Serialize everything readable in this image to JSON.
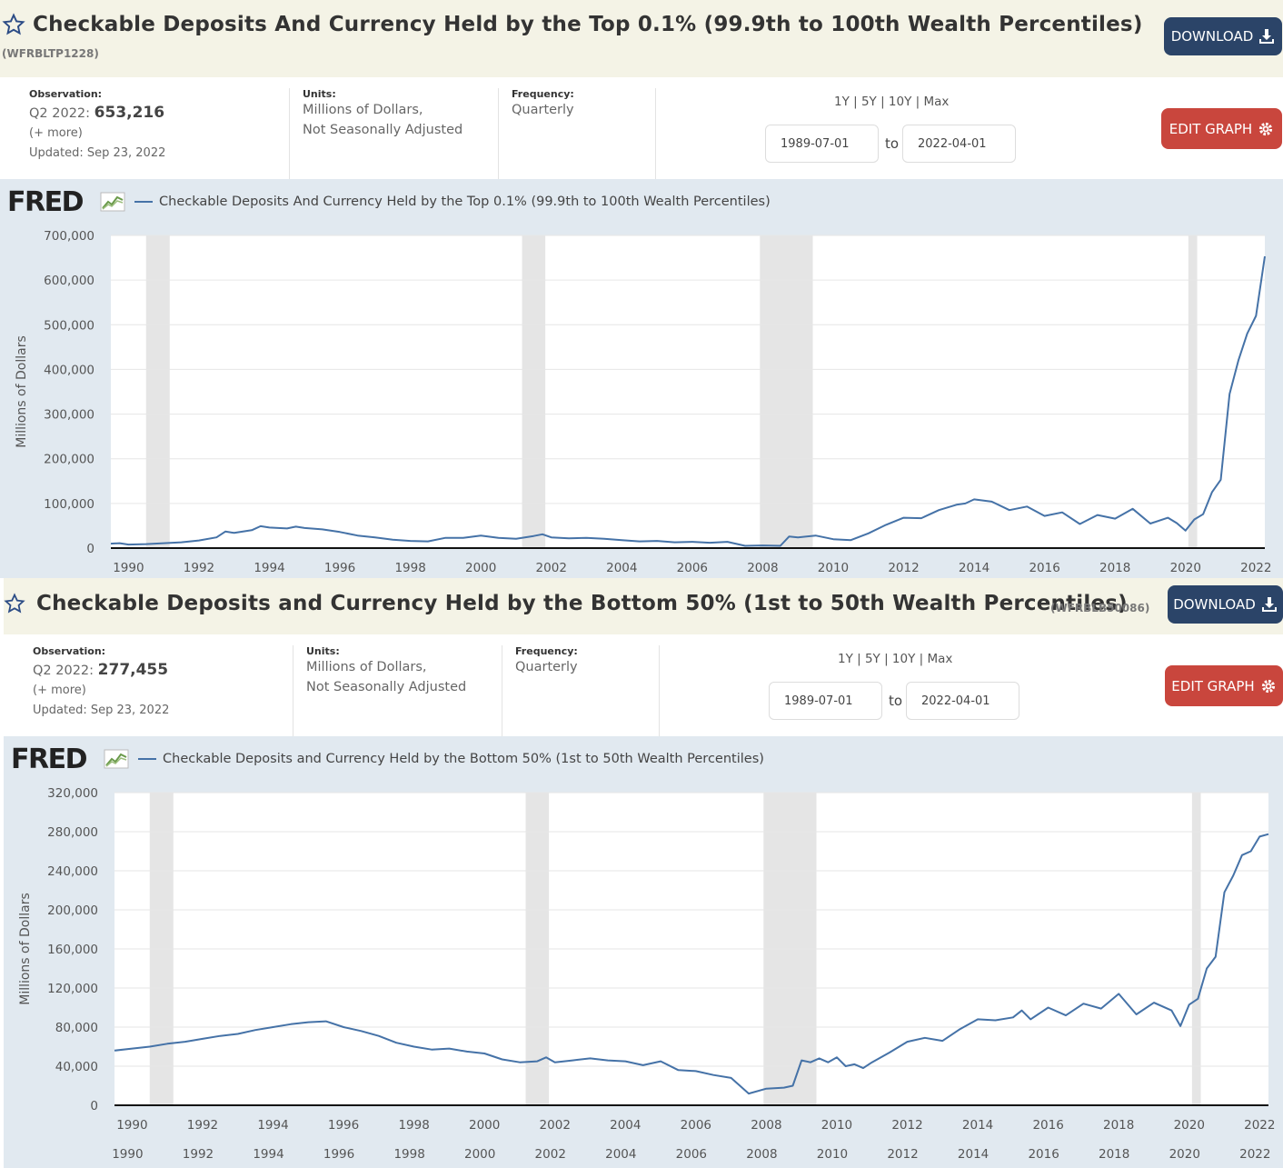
{
  "charts": [
    {
      "title": "Checkable Deposits And Currency Held by the Top 0.1% (99.9th to 100th Wealth Percentiles)",
      "series_id": "(WFRBLTP1228)",
      "download_label": "DOWNLOAD",
      "observation_label": "Observation:",
      "observation_period": "Q2 2022:",
      "observation_value": "653,216",
      "more_label": "(+ more)",
      "updated": "Updated: Sep 23, 2022",
      "units_label": "Units:",
      "units_line1": "Millions of Dollars,",
      "units_line2": "Not Seasonally Adjusted",
      "frequency_label": "Frequency:",
      "frequency_value": "Quarterly",
      "range_links": "1Y | 5Y | 10Y | Max",
      "date_from": "1989-07-01",
      "date_to_label": "to",
      "date_to": "2022-04-01",
      "edit_label": "EDIT GRAPH",
      "brand": "FRED",
      "legend": "Checkable Deposits And Currency Held by the Top 0.1% (99.9th to 100th Wealth Percentiles)",
      "colors": {
        "line": "#4572a7",
        "recession": "#e5e5e5",
        "download": "#2b4468",
        "edit": "#c9463d"
      }
    },
    {
      "title": "Checkable Deposits and Currency Held by the Bottom 50% (1st to 50th Wealth Percentiles)",
      "series_id": "(WFRBLB50086)",
      "download_label": "DOWNLOAD",
      "observation_label": "Observation:",
      "observation_period": "Q2 2022:",
      "observation_value": "277,455",
      "more_label": "(+ more)",
      "updated": "Updated: Sep 23, 2022",
      "units_label": "Units:",
      "units_line1": "Millions of Dollars,",
      "units_line2": "Not Seasonally Adjusted",
      "frequency_label": "Frequency:",
      "frequency_value": "Quarterly",
      "range_links": "1Y | 5Y | 10Y | Max",
      "date_from": "1989-07-01",
      "date_to_label": "to",
      "date_to": "2022-04-01",
      "edit_label": "EDIT GRAPH",
      "brand": "FRED",
      "legend": "Checkable Deposits and Currency Held by the Bottom 50% (1st to 50th Wealth Percentiles)",
      "colors": {
        "line": "#4572a7",
        "recession": "#e5e5e5",
        "download": "#2b4468",
        "edit": "#c9463d"
      }
    }
  ],
  "chart_data": [
    {
      "type": "line",
      "title": "Checkable Deposits And Currency Held by the Top 0.1% (99.9th to 100th Wealth Percentiles)",
      "ylabel": "Millions of Dollars",
      "xlabel": "",
      "xlim": [
        1989.5,
        2022.25
      ],
      "ylim": [
        0,
        700000
      ],
      "y_ticks": [
        0,
        100000,
        200000,
        300000,
        400000,
        500000,
        600000,
        700000
      ],
      "y_tick_labels": [
        "0",
        "100,000",
        "200,000",
        "300,000",
        "400,000",
        "500,000",
        "600,000",
        "700,000"
      ],
      "x_ticks": [
        1990,
        1992,
        1994,
        1996,
        1998,
        2000,
        2002,
        2004,
        2006,
        2008,
        2010,
        2012,
        2014,
        2016,
        2018,
        2020,
        2022
      ],
      "grid": true,
      "recessions": [
        [
          1990.5,
          1991.17
        ],
        [
          2001.17,
          2001.83
        ],
        [
          2007.92,
          2009.42
        ],
        [
          2020.08,
          2020.33
        ]
      ],
      "series": [
        {
          "x": [
            1989.5,
            1989.75,
            1990,
            1990.5,
            1991,
            1991.5,
            1992,
            1992.5,
            1992.75,
            1993,
            1993.5,
            1993.75,
            1994,
            1994.5,
            1994.75,
            1995,
            1995.5,
            1996,
            1996.5,
            1997,
            1997.5,
            1998,
            1998.5,
            1999,
            1999.5,
            2000,
            2000.5,
            2001,
            2001.5,
            2001.75,
            2002,
            2002.5,
            2003,
            2003.5,
            2004,
            2004.5,
            2005,
            2005.5,
            2006,
            2006.5,
            2007,
            2007.5,
            2008,
            2008.5,
            2008.75,
            2009,
            2009.5,
            2010,
            2010.5,
            2011,
            2011.5,
            2012,
            2012.5,
            2013,
            2013.5,
            2013.75,
            2014,
            2014.5,
            2015,
            2015.5,
            2016,
            2016.5,
            2017,
            2017.5,
            2018,
            2018.5,
            2019,
            2019.5,
            2019.75,
            2020,
            2020.25,
            2020.5,
            2020.75,
            2021,
            2021.25,
            2021.5,
            2021.75,
            2022,
            2022.25
          ],
          "y": [
            10000,
            11000,
            8000,
            9000,
            11000,
            13000,
            17000,
            24000,
            37000,
            34000,
            40000,
            49000,
            46000,
            44000,
            48000,
            45000,
            42000,
            36000,
            28000,
            24000,
            19000,
            16000,
            15000,
            23000,
            23000,
            28000,
            23000,
            21000,
            27000,
            31000,
            24000,
            22000,
            23000,
            21000,
            18000,
            15000,
            16000,
            13000,
            14000,
            12000,
            14000,
            5000,
            6000,
            5000,
            26000,
            24000,
            28000,
            20000,
            18000,
            33000,
            52000,
            68000,
            67000,
            85000,
            97000,
            100000,
            109000,
            104000,
            85000,
            93000,
            72000,
            80000,
            54000,
            74000,
            66000,
            88000,
            55000,
            68000,
            56000,
            39000,
            64000,
            76000,
            125000,
            153000,
            345000,
            420000,
            480000,
            520000,
            653216
          ]
        }
      ]
    },
    {
      "type": "line",
      "title": "Checkable Deposits and Currency Held by the Bottom 50% (1st to 50th Wealth Percentiles)",
      "ylabel": "Millions of Dollars",
      "xlabel": "",
      "xlim": [
        1989.5,
        2022.25
      ],
      "ylim": [
        0,
        320000
      ],
      "y_ticks": [
        0,
        40000,
        80000,
        120000,
        160000,
        200000,
        240000,
        280000,
        320000
      ],
      "y_tick_labels": [
        "0",
        "40,000",
        "80,000",
        "120,000",
        "160,000",
        "200,000",
        "240,000",
        "280,000",
        "320,000"
      ],
      "x_ticks": [
        1990,
        1992,
        1994,
        1996,
        1998,
        2000,
        2002,
        2004,
        2006,
        2008,
        2010,
        2012,
        2014,
        2016,
        2018,
        2020,
        2022
      ],
      "grid": true,
      "recessions": [
        [
          1990.5,
          1991.17
        ],
        [
          2001.17,
          2001.83
        ],
        [
          2007.92,
          2009.42
        ],
        [
          2020.08,
          2020.33
        ]
      ],
      "series": [
        {
          "x": [
            1989.5,
            1990,
            1990.5,
            1991,
            1991.5,
            1992,
            1992.5,
            1993,
            1993.5,
            1994,
            1994.5,
            1995,
            1995.5,
            1996,
            1996.5,
            1997,
            1997.5,
            1998,
            1998.5,
            1999,
            1999.5,
            2000,
            2000.5,
            2001,
            2001.5,
            2001.75,
            2002,
            2002.5,
            2003,
            2003.5,
            2004,
            2004.5,
            2005,
            2005.5,
            2006,
            2006.5,
            2007,
            2007.5,
            2008,
            2008.5,
            2008.75,
            2009,
            2009.25,
            2009.5,
            2009.75,
            2010,
            2010.25,
            2010.5,
            2010.75,
            2011,
            2011.5,
            2012,
            2012.5,
            2013,
            2013.5,
            2014,
            2014.5,
            2015,
            2015.25,
            2015.5,
            2016,
            2016.5,
            2017,
            2017.5,
            2018,
            2018.5,
            2019,
            2019.5,
            2019.75,
            2020,
            2020.25,
            2020.5,
            2020.75,
            2021,
            2021.25,
            2021.5,
            2021.75,
            2022,
            2022.25
          ],
          "y": [
            56000,
            58000,
            60000,
            63000,
            65000,
            68000,
            71000,
            73000,
            77000,
            80000,
            83000,
            85000,
            86000,
            80000,
            76000,
            71000,
            64000,
            60000,
            57000,
            58000,
            55000,
            53000,
            47000,
            44000,
            45000,
            49000,
            44000,
            46000,
            48000,
            46000,
            45000,
            41000,
            45000,
            36000,
            35000,
            31000,
            28000,
            12000,
            17000,
            18000,
            20000,
            46000,
            44000,
            48000,
            44000,
            49000,
            40000,
            42000,
            38000,
            44000,
            54000,
            65000,
            69000,
            66000,
            78000,
            88000,
            87000,
            90000,
            97000,
            88000,
            100000,
            92000,
            104000,
            99000,
            114000,
            93000,
            105000,
            97000,
            81000,
            103000,
            109000,
            140000,
            152000,
            218000,
            235000,
            256000,
            260000,
            275000,
            277455
          ]
        }
      ]
    }
  ]
}
